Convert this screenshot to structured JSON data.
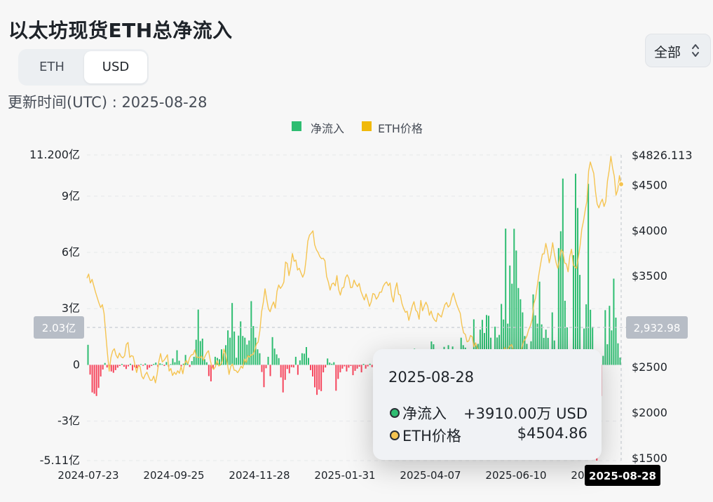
{
  "header": {
    "title": "以太坊现货ETH总净流入"
  },
  "unit_toggle": {
    "options": [
      "ETH",
      "USD"
    ],
    "selected": "USD"
  },
  "range_select": {
    "label": "全部"
  },
  "updated": "更新时间(UTC) : 2025-08-28",
  "legend": [
    {
      "name": "净流入",
      "color": "#2ebd71"
    },
    {
      "name": "ETH价格",
      "color": "#f0b90b"
    }
  ],
  "colors": {
    "inflow": "#2ebd71",
    "outflow": "#f6465d",
    "price": "#f5c451",
    "crosshair_badge": "#b7bdc6",
    "date_badge": "#000000"
  },
  "crosshair": {
    "left_badge": "2.03亿",
    "right_badge": "2,932.98",
    "date_badge": "2025-08-28"
  },
  "tooltip": {
    "date": "2025-08-28",
    "rows": [
      {
        "label": "净流入",
        "value": "+3910.00万 USD",
        "dot_color": "#2ebd71"
      },
      {
        "label": "ETH价格",
        "value": "$4504.86",
        "dot_color": "#f5c451"
      }
    ]
  },
  "chart_data": {
    "type": "bar",
    "title": "以太坊现货ETH总净流入",
    "x_ticks": [
      "2024-07-23",
      "2024-09-25",
      "2024-11-28",
      "2025-01-31",
      "2025-04-07",
      "2025-06-10",
      "2025-08-28"
    ],
    "x_range": [
      "2024-07-23",
      "2025-08-28"
    ],
    "left_axis": {
      "unit": "亿 USD",
      "ticks": [
        "11.200亿",
        "9亿",
        "6亿",
        "3亿",
        "0",
        "-3亿",
        "-5.11亿"
      ],
      "range": [
        -5.11,
        11.2
      ]
    },
    "right_axis": {
      "unit": "USD",
      "ticks": [
        "$4826.113",
        "$4500",
        "$4000",
        "$3500",
        "$2500",
        "$2000",
        "$1500"
      ],
      "range": [
        1469,
        4826.113
      ]
    },
    "series": [
      {
        "name": "净流入",
        "type": "bar",
        "unit": "亿 USD",
        "values": [
          1.07,
          -0.52,
          -1.47,
          -1.54,
          -1.66,
          -1.23,
          -0.62,
          -0.25,
          0.1,
          -0.14,
          -0.2,
          -0.35,
          -0.42,
          -0.28,
          -0.15,
          -0.06,
          0.05,
          -0.1,
          -0.22,
          -0.08,
          0.06,
          -0.3,
          -0.12,
          -0.18,
          -0.08,
          0.04,
          -0.05,
          0.07,
          -0.25,
          -0.15,
          -0.06,
          0.05,
          0.12,
          -0.11,
          0.08,
          0.04,
          -0.06,
          0.15,
          -0.09,
          0.04,
          0.34,
          0.14,
          0.78,
          0.22,
          -0.08,
          0.06,
          0.53,
          0.12,
          -0.11,
          0.2,
          0.43,
          1.34,
          2.95,
          1.27,
          1.4,
          0.3,
          0.14,
          -0.6,
          -0.88,
          -0.22,
          0.43,
          0.37,
          0.3,
          0.83,
          0.62,
          1.05,
          1.84,
          1.45,
          3.3,
          1.78,
          0.38,
          1.56,
          2.32,
          1.54,
          1.45,
          1.08,
          1.3,
          3.4,
          2.07,
          1.45,
          0.83,
          0.62,
          -0.38,
          -1.19,
          -0.18,
          0.43,
          -0.6,
          1.48,
          0.87,
          0.56,
          0.36,
          -0.67,
          -1.47,
          -0.8,
          -0.22,
          -0.45,
          -0.12,
          -0.14,
          0.43,
          -0.53,
          0.24,
          0.62,
          0.6,
          0.95,
          0.37,
          -0.28,
          -0.62,
          -1.2,
          -1.6,
          -1.32,
          -1.4,
          -0.4,
          -0.14,
          0.34,
          0.12,
          0.06,
          0.14,
          -1.38,
          -0.75,
          -0.4,
          -0.2,
          -0.08,
          -0.35,
          -0.15,
          -0.06,
          -0.55,
          -0.32,
          -0.2,
          -0.1,
          -0.4,
          0.05,
          -0.2,
          -0.08,
          0.06,
          -0.12,
          0.08,
          0.04,
          -0.05,
          0.06,
          0.1,
          0.03,
          0.15,
          0.08,
          0.05,
          0.2,
          0.12,
          0.32,
          0.38,
          0.06,
          0.25,
          0.1,
          0.05,
          0.3,
          0.42,
          0.86,
          0.6,
          0.22,
          0.14,
          0.2,
          0.08,
          0.05,
          0.5,
          1.25,
          1.1,
          0.84,
          0.24,
          0.5,
          0.12,
          0.96,
          0.5,
          1.05,
          0.62,
          0.98,
          0.54,
          0.8,
          0.35,
          1.45,
          1.05,
          0.92,
          0.12,
          -0.58,
          0.31,
          2.43,
          1.04,
          1.12,
          1.88,
          2.4,
          1.7,
          2.66,
          2.62,
          1.45,
          0.45,
          2.04,
          1.46,
          1.6,
          3.25,
          2.42,
          7.27,
          2.2,
          5.3,
          4.33,
          7.26,
          6.1,
          4.1,
          3.5,
          2.8,
          1.54,
          1.12,
          0.2,
          1.26,
          3.76,
          2.64,
          2.2,
          4.44,
          2.16,
          1.44,
          1.88,
          1.44,
          0.72,
          2.8,
          1.3,
          0.5,
          6.23,
          7.13,
          9.94,
          3.42,
          2.0,
          -4.32,
          0.56,
          5.85,
          10.2,
          8.37,
          4.8,
          -1.95,
          1.94,
          3.23,
          9.66,
          2.94,
          2.03,
          -2.62,
          -5.11,
          -3.25,
          -1.66,
          0.48,
          2.92,
          1.1,
          3.15,
          1.84,
          4.6,
          2.52,
          1.15,
          0.39
        ]
      },
      {
        "name": "ETH价格",
        "type": "line",
        "unit": "USD",
        "values": [
          3473,
          3518,
          3420,
          3460,
          3390,
          3320,
          3260,
          3200,
          3150,
          3182,
          3087,
          2860,
          2642,
          2451,
          2600,
          2673,
          2698,
          2628,
          2595,
          2650,
          2610,
          2598,
          2621,
          2745,
          2767,
          2603,
          2622,
          2614,
          2524,
          2437,
          2508,
          2504,
          2398,
          2367,
          2412,
          2440,
          2392,
          2351,
          2352,
          2397,
          2323,
          2419,
          2558,
          2645,
          2553,
          2570,
          2598,
          2632,
          2453,
          2480,
          2404,
          2440,
          2415,
          2456,
          2428,
          2502,
          2423,
          2532,
          2570,
          2534,
          2601,
          2630,
          2635,
          2684,
          2603,
          2605,
          2599,
          2618,
          2572,
          2617,
          2653,
          2676,
          2574,
          2496,
          2471,
          2501,
          2568,
          2508,
          2520,
          2561,
          2694,
          2635,
          2538,
          2416,
          2504,
          2530,
          2462,
          2459,
          2435,
          2464,
          2506,
          2484,
          2585,
          2548,
          2623,
          2606,
          2632,
          2634,
          2681,
          2749,
          2772,
          2895,
          3102,
          3205,
          3356,
          3240,
          3136,
          3104,
          3169,
          3212,
          3143,
          3329,
          3398,
          3360,
          3387,
          3430,
          3650,
          3633,
          3501,
          3596,
          3743,
          3658,
          3672,
          3562,
          3582,
          3532,
          3484,
          3528,
          3680,
          3880,
          3946,
          3967,
          3993,
          3840,
          3786,
          3755,
          3711,
          3687,
          3692,
          3663,
          3491,
          3430,
          3342,
          3408,
          3420,
          3388,
          3501,
          3349,
          3287,
          3363,
          3374,
          3477,
          3510,
          3470,
          3368,
          3372,
          3452,
          3408,
          3380,
          3416,
          3330,
          3280,
          3233,
          3300,
          3237,
          3163,
          3212,
          3304,
          3296,
          3242,
          3269,
          3319,
          3319,
          3382,
          3414,
          3432,
          3390,
          3420,
          3278,
          3211,
          3346,
          3422,
          3296,
          3288,
          3193,
          3138,
          3098,
          3109,
          3009,
          3088,
          3167,
          3215,
          3123,
          3101,
          3022,
          3228,
          3115,
          3167,
          3209,
          3166,
          3065,
          3112,
          3045,
          3013,
          2996,
          3088,
          3065,
          3046,
          3116,
          3180,
          3206,
          3155,
          3178,
          3256,
          3310,
          3242,
          3182,
          3131,
          3089,
          2956,
          2872,
          2855,
          2774,
          2784,
          2843,
          2830,
          2718,
          2763,
          2705,
          2614,
          2584,
          2505,
          2597,
          2570,
          2623,
          2635,
          2577,
          2621,
          2594,
          2618,
          2630,
          2571,
          2607,
          2658,
          2713,
          2664,
          2697,
          2727,
          2744,
          2682,
          2673,
          2641,
          2638,
          2652,
          2705,
          2779,
          2802,
          2840,
          2908,
          2950,
          3017,
          3193,
          3255,
          3386,
          3520,
          3634,
          3738,
          3740,
          3854,
          3768,
          3641,
          3730,
          3862,
          3740,
          3644,
          3581,
          3678,
          3785,
          3760,
          3640,
          3630,
          3543,
          3714,
          3791,
          3620,
          3598,
          3580,
          3700,
          3830,
          4010,
          4100,
          4219,
          4320,
          4650,
          4749,
          4683,
          4623,
          4425,
          4287,
          4245,
          4302,
          4341,
          4260,
          4315,
          4540,
          4656,
          4811,
          4684,
          4591,
          4385,
          4442,
          4599,
          4504.86
        ]
      }
    ],
    "grid": true,
    "legend_position": "top-center",
    "highlight": {
      "date": "2025-08-28",
      "net_inflow_usd": "+3910.00万 USD",
      "eth_price": "$4504.86"
    }
  }
}
